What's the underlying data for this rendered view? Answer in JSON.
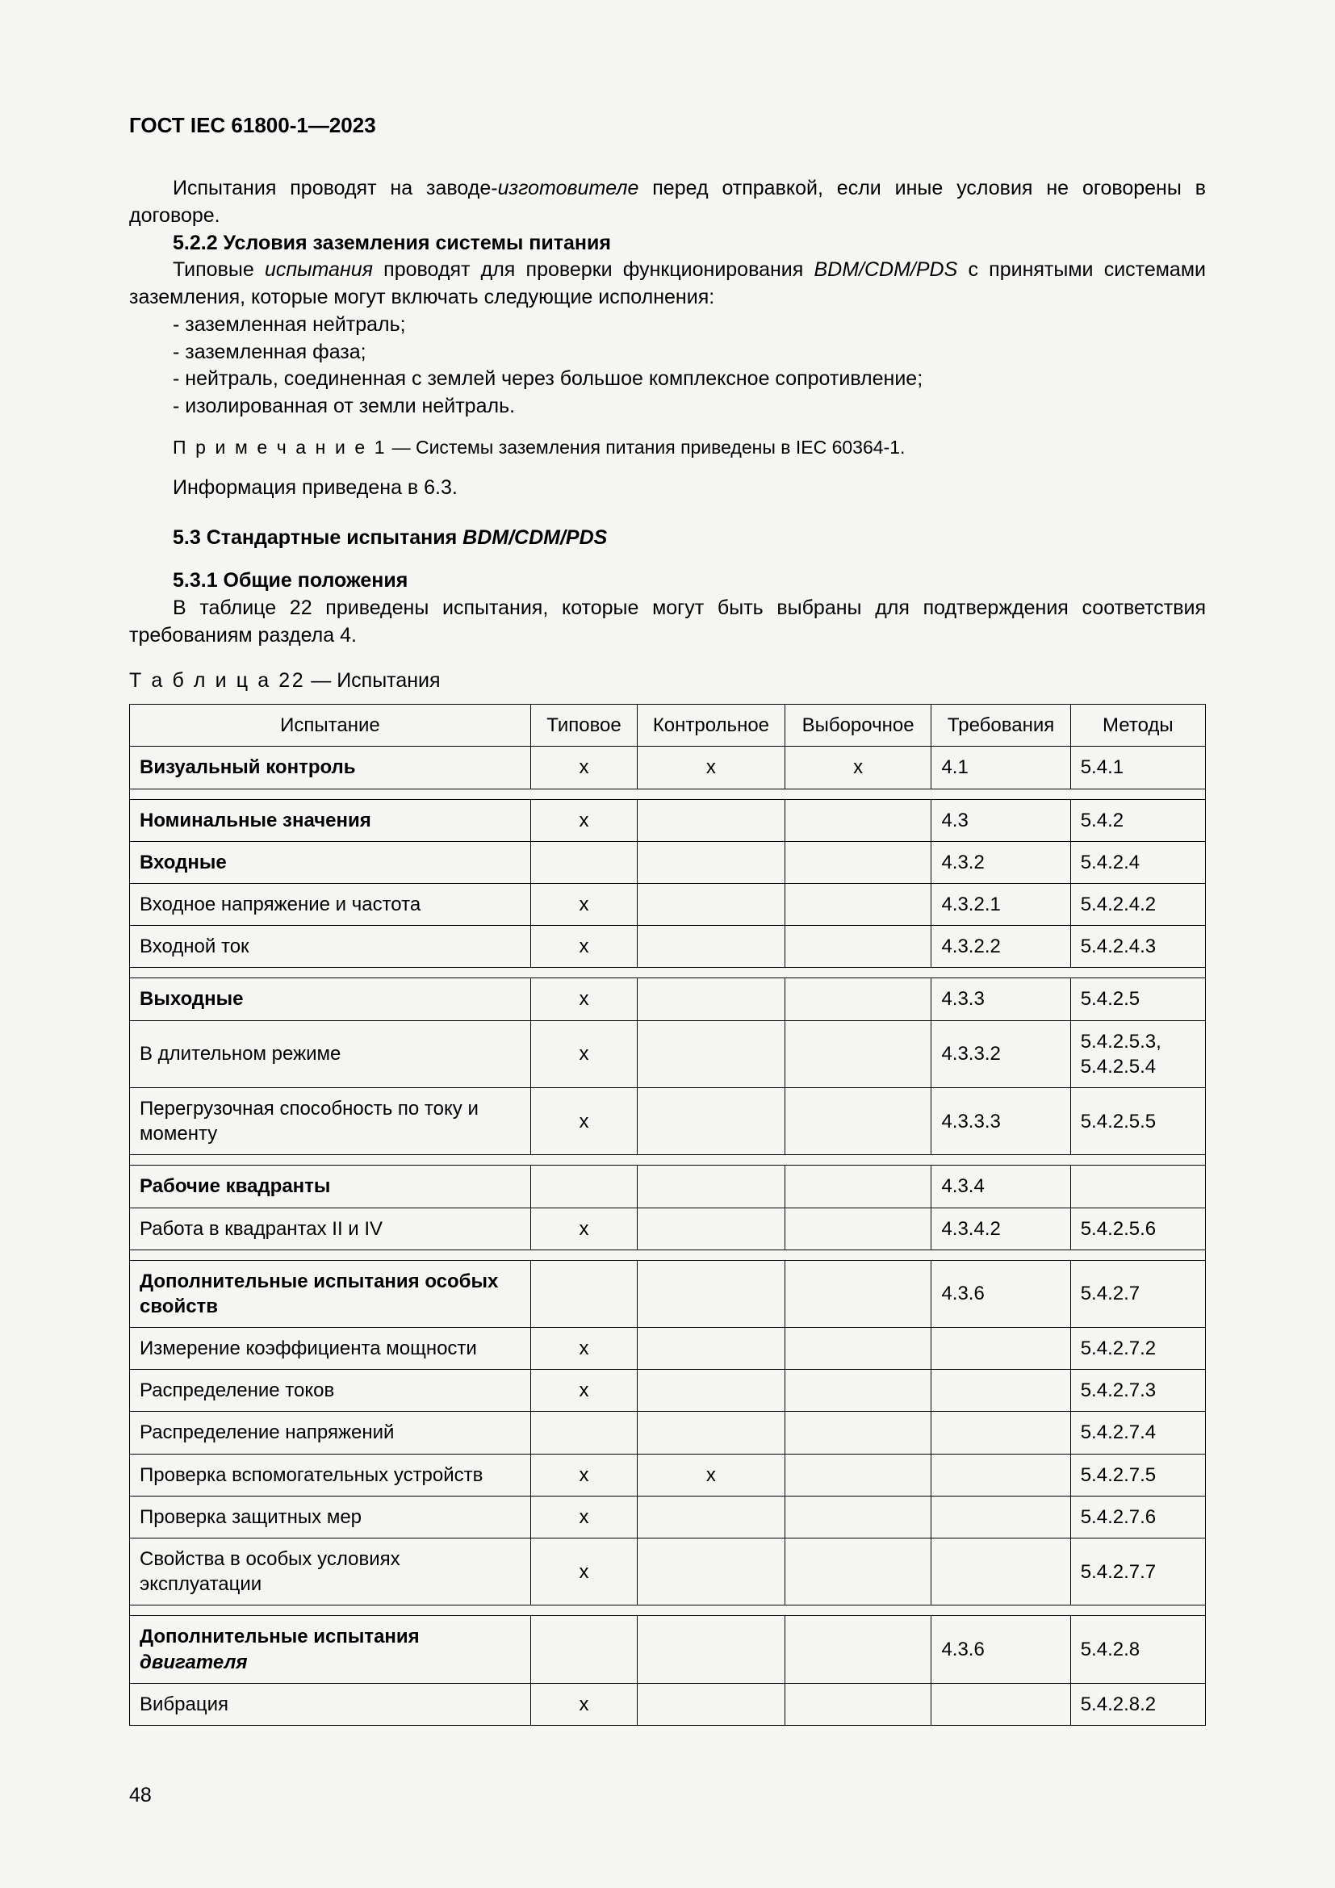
{
  "header": "ГОСТ IEC 61800-1—2023",
  "intro": {
    "p1_a": "Испытания проводят на заводе-",
    "p1_b": "изготовителе",
    "p1_c": " перед отправкой, если иные условия не оговорены в договоре."
  },
  "s522": {
    "heading": "5.2.2  Условия заземления системы питания",
    "p1_a": "Типовые ",
    "p1_b": "испытания",
    "p1_c": " проводят для проверки функционирования ",
    "p1_d": "BDM/CDM/PDS",
    "p1_e": " с принятыми системами заземления, которые могут включать следующие исполнения:",
    "li1": "- заземленная нейтраль;",
    "li2": "- заземленная фаза;",
    "li3": "- нейтраль, соединенная с землей через большое комплексное сопротивление;",
    "li4": "- изолированная от земли нейтраль.",
    "note_label": "П р и м е ч а н и е  1",
    "note_body": " — Системы заземления питания приведены в IEC 60364-1.",
    "p2": "Информация приведена в 6.3."
  },
  "s53": {
    "heading_a": "5.3  Стандартные испытания ",
    "heading_b": "BDM/CDM/PDS"
  },
  "s531": {
    "heading": "5.3.1  Общие положения",
    "p1": "В таблице 22 приведены испытания, которые могут быть выбраны для подтверждения соответствия требованиям раздела 4."
  },
  "table": {
    "caption_label": "Т а б л и ц а   22",
    "caption_rest": " — Испытания",
    "columns": [
      "Испытание",
      "Типовое",
      "Контрольное",
      "Выборочное",
      "Требования",
      "Методы"
    ],
    "rows": [
      {
        "kind": "row",
        "test": "Визуальный контроль",
        "bold": true,
        "typ": "x",
        "ctl": "x",
        "sel": "x",
        "req": "4.1",
        "meth": "5.4.1"
      },
      {
        "kind": "spacer"
      },
      {
        "kind": "row",
        "test": "Номинальные значения",
        "bold": true,
        "typ": "x",
        "ctl": "",
        "sel": "",
        "req": "4.3",
        "meth": "5.4.2"
      },
      {
        "kind": "row",
        "test": "Входные",
        "bold": true,
        "typ": "",
        "ctl": "",
        "sel": "",
        "req": "4.3.2",
        "meth": "5.4.2.4"
      },
      {
        "kind": "row",
        "test": "Входное напряжение и частота",
        "bold": false,
        "typ": "x",
        "ctl": "",
        "sel": "",
        "req": "4.3.2.1",
        "meth": "5.4.2.4.2"
      },
      {
        "kind": "row",
        "test": "Входной ток",
        "bold": false,
        "typ": "x",
        "ctl": "",
        "sel": "",
        "req": "4.3.2.2",
        "meth": "5.4.2.4.3"
      },
      {
        "kind": "spacer"
      },
      {
        "kind": "row",
        "test": "Выходные",
        "bold": true,
        "typ": "x",
        "ctl": "",
        "sel": "",
        "req": "4.3.3",
        "meth": "5.4.2.5"
      },
      {
        "kind": "row",
        "test": "В длительном режиме",
        "bold": false,
        "typ": "x",
        "ctl": "",
        "sel": "",
        "req": "4.3.3.2",
        "meth": "5.4.2.5.3, 5.4.2.5.4"
      },
      {
        "kind": "row",
        "test": "Перегрузочная способность по току и моменту",
        "bold": false,
        "typ": "x",
        "ctl": "",
        "sel": "",
        "req": "4.3.3.3",
        "meth": "5.4.2.5.5"
      },
      {
        "kind": "spacer"
      },
      {
        "kind": "row",
        "test": "Рабочие квадранты",
        "bold": true,
        "typ": "",
        "ctl": "",
        "sel": "",
        "req": "4.3.4",
        "meth": ""
      },
      {
        "kind": "row",
        "test": "Работа в квадрантах II и IV",
        "bold": false,
        "typ": "x",
        "ctl": "",
        "sel": "",
        "req": "4.3.4.2",
        "meth": "5.4.2.5.6"
      },
      {
        "kind": "spacer"
      },
      {
        "kind": "row",
        "test": "Дополнительные испытания особых свойств",
        "bold": true,
        "typ": "",
        "ctl": "",
        "sel": "",
        "req": "4.3.6",
        "meth": "5.4.2.7"
      },
      {
        "kind": "row",
        "test": "Измерение коэффициента мощности",
        "bold": false,
        "typ": "x",
        "ctl": "",
        "sel": "",
        "req": "",
        "meth": "5.4.2.7.2"
      },
      {
        "kind": "row",
        "test": "Распределение токов",
        "bold": false,
        "typ": "x",
        "ctl": "",
        "sel": "",
        "req": "",
        "meth": "5.4.2.7.3"
      },
      {
        "kind": "row",
        "test": "Распределение напряжений",
        "bold": false,
        "typ": "",
        "ctl": "",
        "sel": "",
        "req": "",
        "meth": "5.4.2.7.4"
      },
      {
        "kind": "row",
        "test": "Проверка вспомогательных устройств",
        "bold": false,
        "typ": "x",
        "ctl": "x",
        "sel": "",
        "req": "",
        "meth": "5.4.2.7.5"
      },
      {
        "kind": "row",
        "test": "Проверка защитных мер",
        "bold": false,
        "typ": "x",
        "ctl": "",
        "sel": "",
        "req": "",
        "meth": "5.4.2.7.6"
      },
      {
        "kind": "row",
        "test": "Свойства в особых условиях эксплуатации",
        "bold": false,
        "typ": "x",
        "ctl": "",
        "sel": "",
        "req": "",
        "meth": "5.4.2.7.7"
      },
      {
        "kind": "spacer"
      },
      {
        "kind": "row",
        "test_a": "Дополнительные испытания ",
        "test_b": "двигателя",
        "bold": true,
        "italic_part": true,
        "typ": "",
        "ctl": "",
        "sel": "",
        "req": "4.3.6",
        "meth": "5.4.2.8"
      },
      {
        "kind": "row",
        "test": "Вибрация",
        "bold": false,
        "typ": "x",
        "ctl": "",
        "sel": "",
        "req": "",
        "meth": "5.4.2.8.2"
      }
    ]
  },
  "page_number": "48",
  "colors": {
    "page_bg": "#f5f5f3",
    "text": "#000000",
    "border": "#000000"
  }
}
